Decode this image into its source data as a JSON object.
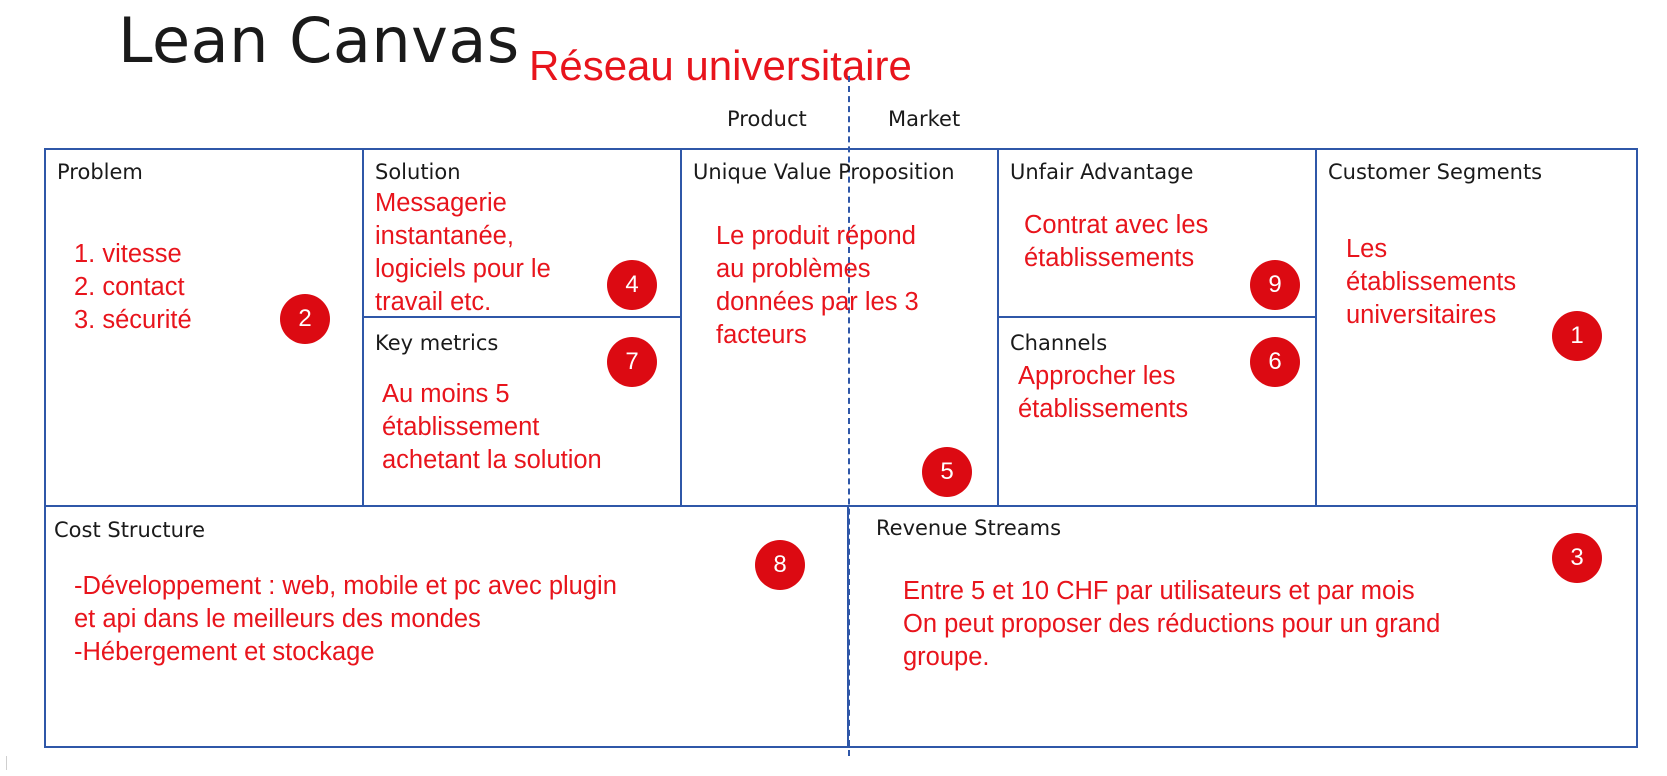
{
  "title": "Lean Canvas",
  "subtitle": "Réseau universitaire",
  "axis_labels": {
    "product": "Product",
    "market": "Market"
  },
  "colors": {
    "border": "#2f57a8",
    "annotation": "#e8141c",
    "badge": "#dc0a12",
    "text": "#1a1a1a"
  },
  "boxes": {
    "problem": {
      "label": "Problem",
      "content": "1. vitesse\n2. contact\n3. sécurité",
      "badge": "2"
    },
    "solution": {
      "label": "Solution",
      "content": "Messagerie\ninstantanée,\nlogiciels pour le\ntravail etc.",
      "badge": "4"
    },
    "key_metrics": {
      "label": "Key metrics",
      "content": "  Au moins 5\nétablissement\nachetant la solution",
      "badge": "7"
    },
    "uvp": {
      "label": "Unique Value Proposition",
      "content": "Le produit répond\nau problèmes\ndonnées par les 3\nfacteurs",
      "badge": "5"
    },
    "unfair_advantage": {
      "label": "Unfair Advantage",
      "content": "Contrat avec les\nétablissements",
      "badge": "9"
    },
    "channels": {
      "label": "Channels",
      "content": "Approcher les\nétablissements",
      "badge": "6"
    },
    "customer_segments": {
      "label": "Customer Segments",
      "content": "Les\nétablissements\nuniversitaires",
      "badge": "1"
    },
    "cost_structure": {
      "label": "Cost Structure",
      "content": " -Développement : web, mobile et pc avec plugin\net api dans le meilleurs des mondes\n-Hébergement et stockage",
      "badge": "8"
    },
    "revenue_streams": {
      "label": "Revenue Streams",
      "content": "Entre 5 et 10 CHF par utilisateurs et par mois\nOn peut proposer des réductions pour un grand\ngroupe.",
      "badge": "3"
    }
  }
}
